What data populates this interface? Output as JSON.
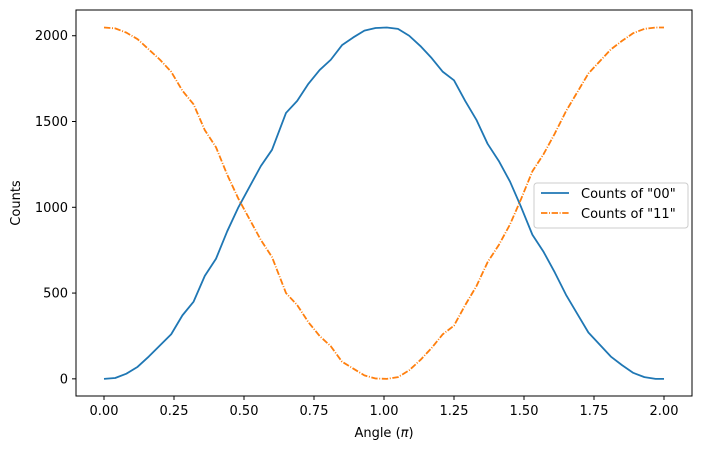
{
  "chart_data": {
    "type": "line",
    "title": "",
    "xlabel": "Angle (π)",
    "ylabel": "Counts",
    "xlim": [
      -0.1,
      2.1
    ],
    "ylim": [
      -100,
      2150
    ],
    "xticks": [
      0.0,
      0.25,
      0.5,
      0.75,
      1.0,
      1.25,
      1.5,
      1.75,
      2.0
    ],
    "xtick_labels": [
      "0.00",
      "0.25",
      "0.50",
      "0.75",
      "1.00",
      "1.25",
      "1.50",
      "1.75",
      "2.00"
    ],
    "yticks": [
      0,
      500,
      1000,
      1500,
      2000
    ],
    "ytick_labels": [
      "0",
      "500",
      "1000",
      "1500",
      "2000"
    ],
    "grid": false,
    "legend_position": "center-right",
    "x": [
      0.0,
      0.04,
      0.08,
      0.12,
      0.16,
      0.2,
      0.24,
      0.28,
      0.32,
      0.36,
      0.4,
      0.44,
      0.48,
      0.52,
      0.56,
      0.6,
      0.65,
      0.69,
      0.73,
      0.77,
      0.81,
      0.85,
      0.89,
      0.93,
      0.97,
      1.01,
      1.05,
      1.09,
      1.13,
      1.17,
      1.21,
      1.25,
      1.29,
      1.33,
      1.37,
      1.41,
      1.45,
      1.49,
      1.53,
      1.57,
      1.61,
      1.65,
      1.69,
      1.73,
      1.77,
      1.81,
      1.85,
      1.89,
      1.93,
      1.97,
      2.0
    ],
    "series": [
      {
        "name": "Counts of \"00\"",
        "color": "#1f77b4",
        "linestyle": "solid",
        "values": [
          0,
          5,
          30,
          70,
          130,
          195,
          260,
          370,
          450,
          600,
          700,
          860,
          1000,
          1120,
          1240,
          1335,
          1550,
          1620,
          1720,
          1800,
          1860,
          1945,
          1990,
          2030,
          2045,
          2048,
          2040,
          2000,
          1940,
          1870,
          1790,
          1740,
          1620,
          1510,
          1370,
          1270,
          1150,
          1000,
          840,
          740,
          620,
          490,
          380,
          270,
          200,
          130,
          80,
          35,
          10,
          0,
          0
        ]
      },
      {
        "name": "Counts of \"11\"",
        "color": "#ff7f0e",
        "linestyle": "dashdot",
        "values": [
          2048,
          2043,
          2018,
          1980,
          1920,
          1860,
          1790,
          1680,
          1600,
          1450,
          1350,
          1190,
          1050,
          930,
          810,
          710,
          500,
          430,
          330,
          250,
          190,
          100,
          60,
          20,
          2,
          0,
          10,
          50,
          110,
          180,
          260,
          310,
          430,
          540,
          680,
          780,
          900,
          1050,
          1210,
          1310,
          1430,
          1560,
          1670,
          1780,
          1850,
          1920,
          1970,
          2015,
          2040,
          2048,
          2048
        ]
      }
    ]
  }
}
